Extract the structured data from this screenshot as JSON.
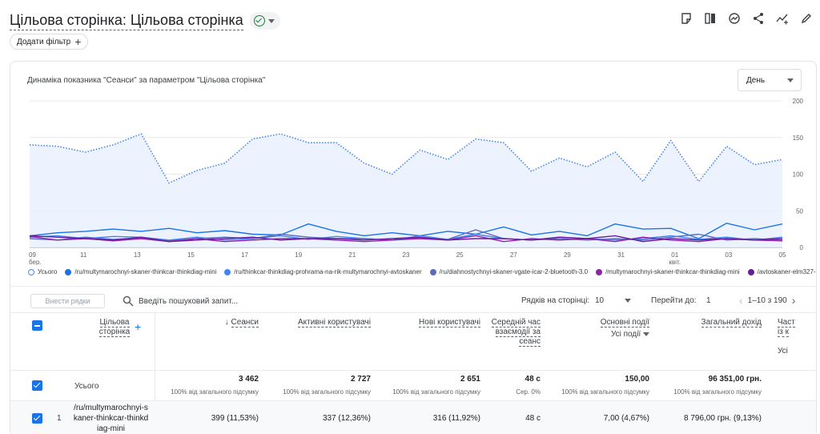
{
  "header": {
    "title": "Цільова сторінка: Цільова сторінка",
    "add_filter": "Додати фільтр",
    "toolbar_icons": [
      "note-icon",
      "compare-icon",
      "insights-icon",
      "share-icon",
      "trend-icon",
      "edit-icon"
    ]
  },
  "chart": {
    "title": "Динаміка показника \"Сеанси\" за параметром \"Цільова сторінка\"",
    "granularity": "День"
  },
  "chart_data": {
    "type": "line",
    "x_tick_labels": [
      {
        "day": "09",
        "month": "бер."
      },
      {
        "day": "11",
        "month": ""
      },
      {
        "day": "13",
        "month": ""
      },
      {
        "day": "15",
        "month": ""
      },
      {
        "day": "17",
        "month": ""
      },
      {
        "day": "19",
        "month": ""
      },
      {
        "day": "21",
        "month": ""
      },
      {
        "day": "23",
        "month": ""
      },
      {
        "day": "25",
        "month": ""
      },
      {
        "day": "27",
        "month": ""
      },
      {
        "day": "29",
        "month": ""
      },
      {
        "day": "31",
        "month": ""
      },
      {
        "day": "01",
        "month": "квіт."
      },
      {
        "day": "03",
        "month": ""
      },
      {
        "day": "05",
        "month": ""
      }
    ],
    "y_ticks": [
      0,
      50,
      100,
      150,
      200
    ],
    "ylim": [
      0,
      200
    ],
    "series": [
      {
        "name": "Усього",
        "color": "#4285f4",
        "style": "dotted",
        "area": true,
        "values": [
          140,
          138,
          130,
          140,
          155,
          88,
          105,
          115,
          148,
          155,
          143,
          143,
          115,
          100,
          133,
          120,
          148,
          143,
          104,
          122,
          110,
          130,
          90,
          146,
          90,
          138,
          113,
          120
        ]
      },
      {
        "name": "/ru/multymarochnyi-skaner-thinkcar-thinkdiag-mini",
        "color": "#1a73e8",
        "style": "solid",
        "area": false,
        "values": [
          16,
          20,
          22,
          25,
          22,
          26,
          20,
          23,
          18,
          17,
          32,
          22,
          16,
          20,
          16,
          22,
          18,
          28,
          17,
          22,
          16,
          32,
          25,
          26,
          12,
          33,
          24,
          32
        ]
      },
      {
        "name": "/ru/thinkcar-thinkdiag-prohrama-na-rik-multymarochnyi-avtoskaner",
        "color": "#4285f4",
        "style": "solid",
        "area": false,
        "values": [
          14,
          16,
          12,
          15,
          14,
          10,
          14,
          10,
          12,
          16,
          11,
          15,
          12,
          10,
          16,
          11,
          18,
          12,
          10,
          14,
          12,
          10,
          12,
          16,
          11,
          14,
          10,
          14
        ]
      },
      {
        "name": "/ru/diahnostychnyi-skaner-vgate-icar-2-bluetooth-3.0",
        "color": "#5c6bc0",
        "style": "solid",
        "area": false,
        "values": [
          12,
          10,
          14,
          11,
          13,
          9,
          12,
          14,
          12,
          18,
          14,
          12,
          12,
          10,
          13,
          11,
          24,
          12,
          10,
          12,
          10,
          12,
          10,
          14,
          18,
          10,
          12,
          10
        ]
      },
      {
        "name": "/multymarochnyi-skaner-thinkcar-thinkdiag-mini",
        "color": "#8e24aa",
        "style": "solid",
        "area": false,
        "values": [
          15,
          10,
          12,
          9,
          12,
          8,
          12,
          8,
          10,
          12,
          12,
          10,
          8,
          10,
          12,
          10,
          16,
          8,
          12,
          10,
          12,
          8,
          14,
          10,
          8,
          12,
          10,
          9
        ]
      },
      {
        "name": "/avtoskaner-elm327-o",
        "color": "#6a1b9a",
        "style": "solid",
        "area": false,
        "values": [
          16,
          14,
          12,
          10,
          14,
          8,
          10,
          12,
          14,
          10,
          12,
          12,
          10,
          12,
          14,
          10,
          12,
          12,
          10,
          14,
          12,
          16,
          8,
          12,
          10,
          12,
          10,
          12
        ]
      }
    ]
  },
  "table_controls": {
    "add_rows": "Внести рядки",
    "search_placeholder": "Введіть пошуковий запит...",
    "rows_per_page_label": "Рядків на сторінці:",
    "rows_per_page_value": "10",
    "goto_label": "Перейти до:",
    "goto_value": "1",
    "range": "1–10 з 190"
  },
  "table": {
    "dimension_header": "Цільова сторінка",
    "columns": [
      {
        "label": "Сеанси",
        "sort": "↓"
      },
      {
        "label": "Активні користувачі"
      },
      {
        "label": "Нові користувачі"
      },
      {
        "label": "Середній час взаємодії за сеанс"
      },
      {
        "label": "Основні події",
        "sub": "Усі події"
      },
      {
        "label": "Загальний дохід"
      },
      {
        "label": "Част із к",
        "sub": "Усі"
      }
    ],
    "total": {
      "label": "Усього",
      "values": [
        "3 462",
        "2 727",
        "2 651",
        "48 с",
        "150,00",
        "96 351,00 грн."
      ],
      "subs": [
        "100% від загального підсумку",
        "100% від загального підсумку",
        "100% від загального підсумку",
        "Сер. 0%",
        "100% від загального підсумку",
        "100% від загального підсумку"
      ]
    },
    "rows": [
      {
        "index": "1",
        "page": "/ru/multymarochnyi-skaner-thinkcar-thinkdiag-mini",
        "values": [
          "399 (11,53%)",
          "337 (12,36%)",
          "316 (11,92%)",
          "48 с",
          "7,00 (4,67%)",
          "8 796,00 грн. (9,13%)"
        ]
      }
    ]
  }
}
